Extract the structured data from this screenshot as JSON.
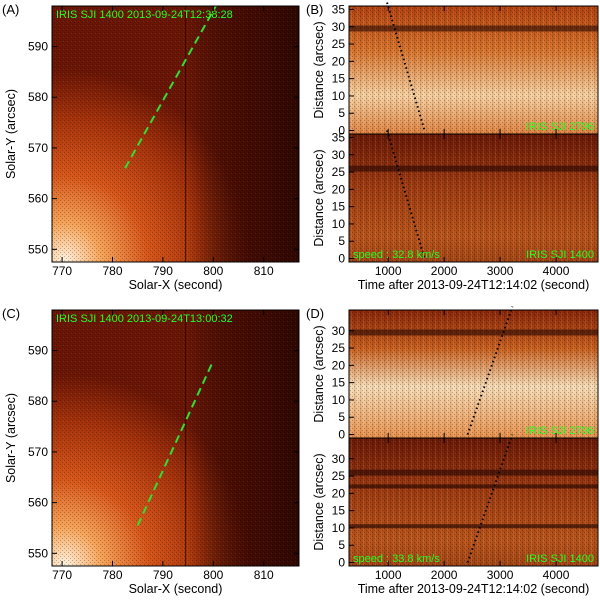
{
  "figure": {
    "panels": [
      {
        "letter": "(A)",
        "kind": "image",
        "instrument_label": "IRIS SJI 1400  2013-09-24T12:38:28",
        "xlabel": "Solar-X (second)",
        "ylabel": "Solar-Y (arcsec)",
        "xticks": [
          "770",
          "780",
          "790",
          "800",
          "810"
        ],
        "yticks": [
          "550",
          "560",
          "570",
          "580",
          "590"
        ],
        "xlim": [
          768,
          817
        ],
        "ylim": [
          547.5,
          598
        ],
        "slit": {
          "x1": 782.5,
          "y1": 566,
          "x2": 800.5,
          "y2": 598
        }
      },
      {
        "letter": "(B)",
        "kind": "timeslice-pair",
        "upper_label": "IRIS SJI 2796",
        "lower_label": "IRIS SJI 1400",
        "speed_label": "speed : 32.8 km/s",
        "xlabel": "Time after 2013-09-24T12:14:02 (second)",
        "ylabel": "Distance (arcsec)",
        "xticks": [
          "1000",
          "2000",
          "3000",
          "4000"
        ],
        "yticks": [
          "0",
          "5",
          "10",
          "15",
          "20",
          "25",
          "30",
          "35"
        ],
        "xlim": [
          300,
          4750
        ],
        "ylim": [
          -1,
          36
        ],
        "fit_line": {
          "t1": 980,
          "d1": 37,
          "t2": 1650,
          "d2": 0
        }
      },
      {
        "letter": "(C)",
        "kind": "image",
        "instrument_label": "IRIS SJI 1400  2013-09-24T13:00:32",
        "xlabel": "Solar-X (second)",
        "ylabel": "Solar-Y (arcsec)",
        "xticks": [
          "770",
          "780",
          "790",
          "800",
          "810"
        ],
        "yticks": [
          "550",
          "560",
          "570",
          "580",
          "590"
        ],
        "xlim": [
          768,
          817
        ],
        "ylim": [
          547.5,
          598
        ],
        "slit": {
          "x1": 785,
          "y1": 555.5,
          "x2": 800,
          "y2": 588
        }
      },
      {
        "letter": "(D)",
        "kind": "timeslice-pair",
        "upper_label": "IRIS SJI 2796",
        "lower_label": "IRIS SJI 1400",
        "speed_label": "speed : 33.8 km/s",
        "xlabel": "Time after 2013-09-24T12:14:02 (second)",
        "ylabel": "Distance (arcsec)",
        "xticks": [
          "1000",
          "2000",
          "3000",
          "4000"
        ],
        "yticks": [
          "0",
          "5",
          "10",
          "15",
          "20",
          "25",
          "30"
        ],
        "xlim": [
          300,
          4750
        ],
        "ylim": [
          -1,
          36
        ],
        "fit_line": {
          "t1": 2420,
          "d1": 0,
          "t2": 3220,
          "d2": 37
        }
      }
    ],
    "colors": {
      "image_dark": "#5a0d02",
      "image_mid": "#a8340a",
      "image_bright": "#f07a28",
      "image_white": "#fff6e6",
      "overlay_green": "#22ff22",
      "slit_green": "#33dd33",
      "fit_line": "#000000"
    }
  }
}
